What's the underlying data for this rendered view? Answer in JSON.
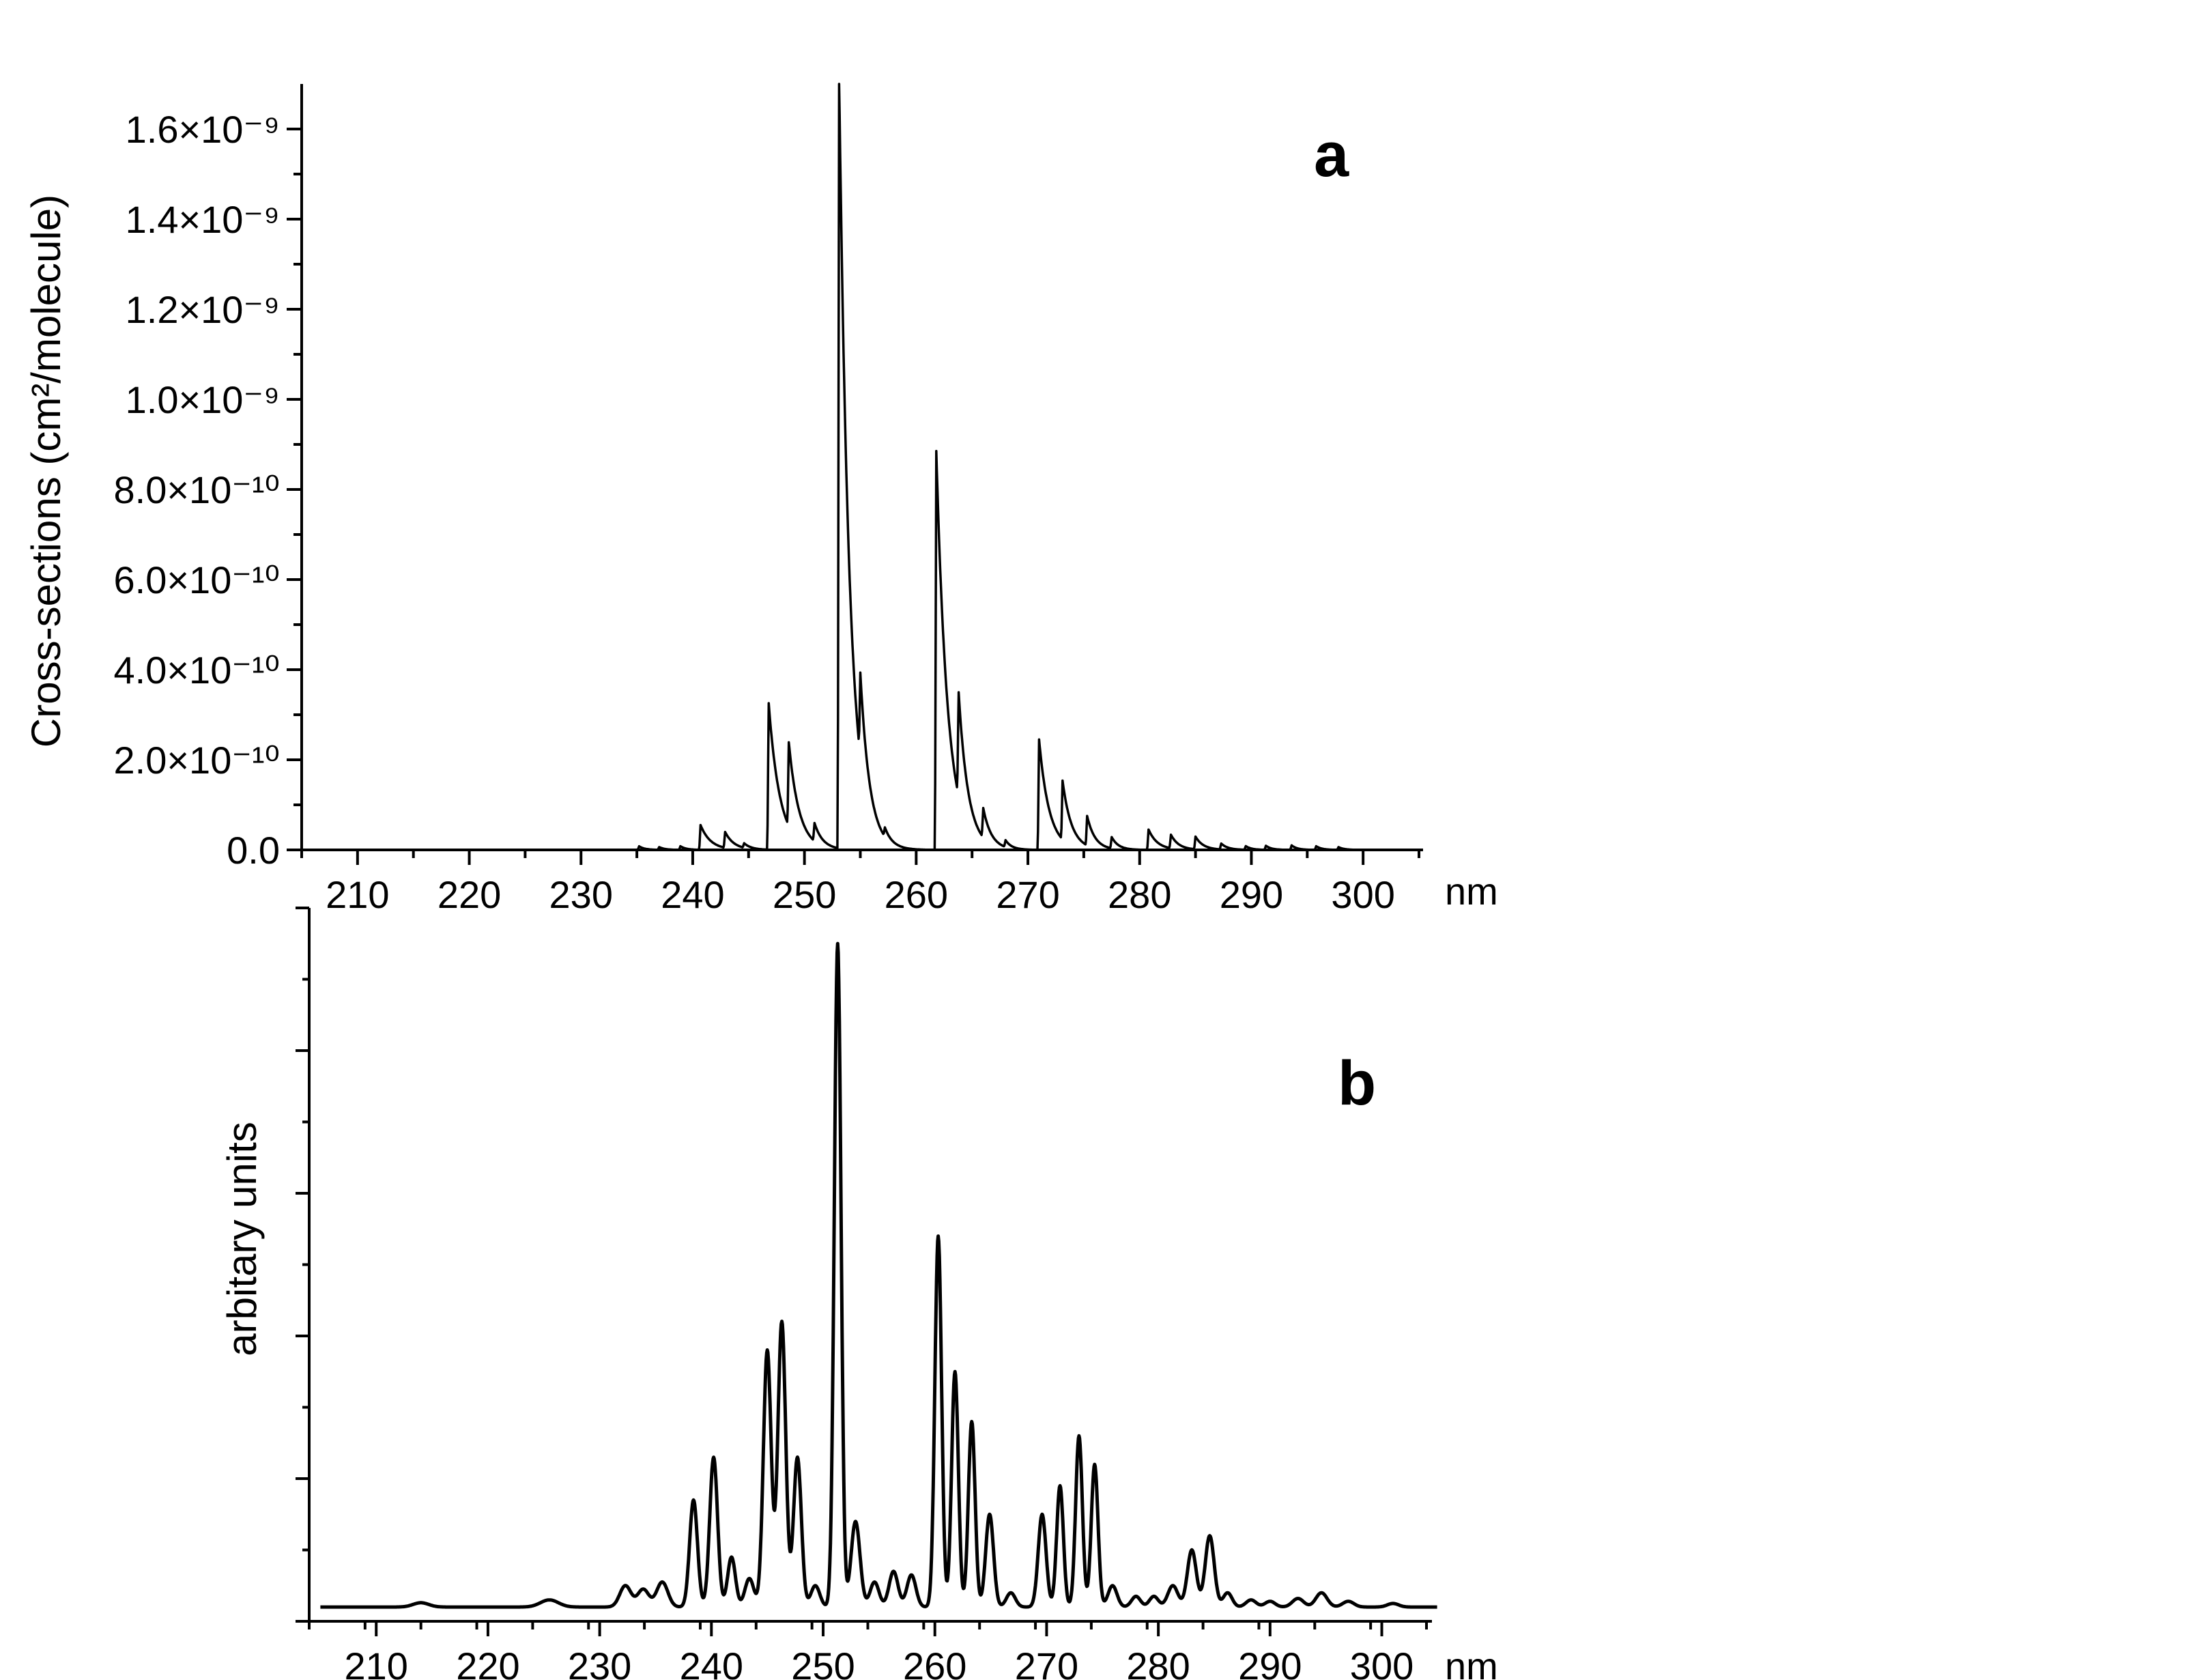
{
  "chart_data": [
    {
      "type": "line",
      "panel_label": "a",
      "ylabel": "Cross-sections (cm²/molecule)",
      "x_unit": "nm",
      "xlim": [
        205,
        305
      ],
      "ylim": [
        0,
        1.7e-09
      ],
      "x_tick_labels": [
        "210",
        "220",
        "230",
        "240",
        "250",
        "260",
        "270",
        "280",
        "290",
        "300"
      ],
      "x_ticks": [
        210,
        220,
        230,
        240,
        250,
        260,
        270,
        280,
        290,
        300
      ],
      "y_ticks": [
        {
          "value": 0,
          "label": "0.0"
        },
        {
          "value": 2e-10,
          "label": "2.0×10⁻¹⁰"
        },
        {
          "value": 4e-10,
          "label": "4.0×10⁻¹⁰"
        },
        {
          "value": 6e-10,
          "label": "6.0×10⁻¹⁰"
        },
        {
          "value": 8e-10,
          "label": "8.0×10⁻¹⁰"
        },
        {
          "value": 1e-09,
          "label": "1.0×10⁻⁹"
        },
        {
          "value": 1.2e-09,
          "label": "1.2×10⁻⁹"
        },
        {
          "value": 1.4e-09,
          "label": "1.4×10⁻⁹"
        },
        {
          "value": 1.6e-09,
          "label": "1.6×10⁻⁹"
        }
      ],
      "x_range": [
        204,
        299.5
      ],
      "peaks": [
        {
          "x": 235.2,
          "y": 8e-12,
          "w": 0.5
        },
        {
          "x": 237.0,
          "y": 6e-12,
          "w": 0.5
        },
        {
          "x": 238.9,
          "y": 8e-12,
          "w": 0.5
        },
        {
          "x": 240.7,
          "y": 5.5e-11,
          "w": 0.9
        },
        {
          "x": 242.9,
          "y": 3.5e-11,
          "w": 0.8
        },
        {
          "x": 244.6,
          "y": 1e-11,
          "w": 0.6
        },
        {
          "x": 246.8,
          "y": 3.25e-10,
          "w": 1.0
        },
        {
          "x": 248.6,
          "y": 1.85e-10,
          "w": 0.9
        },
        {
          "x": 250.9,
          "y": 4e-11,
          "w": 0.7
        },
        {
          "x": 253.1,
          "y": 1.72e-09,
          "w": 0.9
        },
        {
          "x": 255.0,
          "y": 1.85e-10,
          "w": 0.8
        },
        {
          "x": 257.2,
          "y": 2e-11,
          "w": 0.6
        },
        {
          "x": 261.8,
          "y": 8.85e-10,
          "w": 1.0
        },
        {
          "x": 263.8,
          "y": 2.3e-10,
          "w": 0.8
        },
        {
          "x": 266.0,
          "y": 6.5e-11,
          "w": 0.7
        },
        {
          "x": 268.0,
          "y": 1.5e-11,
          "w": 0.5
        },
        {
          "x": 271.0,
          "y": 2.45e-10,
          "w": 0.9
        },
        {
          "x": 273.1,
          "y": 1.3e-10,
          "w": 0.8
        },
        {
          "x": 275.3,
          "y": 6.5e-11,
          "w": 0.7
        },
        {
          "x": 277.5,
          "y": 2.5e-11,
          "w": 0.6
        },
        {
          "x": 280.8,
          "y": 4.5e-11,
          "w": 0.8
        },
        {
          "x": 282.8,
          "y": 3e-11,
          "w": 0.7
        },
        {
          "x": 285.0,
          "y": 2.8e-11,
          "w": 0.7
        },
        {
          "x": 287.3,
          "y": 1.3e-11,
          "w": 0.6
        },
        {
          "x": 289.5,
          "y": 8e-12,
          "w": 0.5
        },
        {
          "x": 291.3,
          "y": 9e-12,
          "w": 0.5
        },
        {
          "x": 293.6,
          "y": 1e-11,
          "w": 0.5
        },
        {
          "x": 295.8,
          "y": 8e-12,
          "w": 0.5
        },
        {
          "x": 297.8,
          "y": 6e-12,
          "w": 0.5
        }
      ]
    },
    {
      "type": "line",
      "panel_label": "b",
      "ylabel": "arbitary units",
      "x_unit": "nm",
      "xlim": [
        204,
        305
      ],
      "ylim": [
        0,
        1
      ],
      "x_tick_labels": [
        "210",
        "220",
        "230",
        "240",
        "250",
        "260",
        "270",
        "280",
        "290",
        "300"
      ],
      "x_ticks": [
        210,
        220,
        230,
        240,
        250,
        260,
        270,
        280,
        290,
        300
      ],
      "y_ticks": [
        0.0,
        0.2,
        0.4,
        0.6,
        0.8,
        1.0
      ],
      "y_tick_labels_shown": false,
      "x_range": [
        205,
        305
      ],
      "baseline": 0.02,
      "peaks": [
        {
          "x": 214.0,
          "y": 0.006,
          "w": 0.7
        },
        {
          "x": 225.5,
          "y": 0.01,
          "w": 0.8
        },
        {
          "x": 232.3,
          "y": 0.03,
          "w": 0.5
        },
        {
          "x": 233.9,
          "y": 0.025,
          "w": 0.5
        },
        {
          "x": 235.6,
          "y": 0.035,
          "w": 0.5
        },
        {
          "x": 238.4,
          "y": 0.15,
          "w": 0.35
        },
        {
          "x": 240.2,
          "y": 0.21,
          "w": 0.35
        },
        {
          "x": 241.8,
          "y": 0.07,
          "w": 0.35
        },
        {
          "x": 243.4,
          "y": 0.04,
          "w": 0.4
        },
        {
          "x": 245.0,
          "y": 0.36,
          "w": 0.35
        },
        {
          "x": 246.3,
          "y": 0.4,
          "w": 0.35
        },
        {
          "x": 247.7,
          "y": 0.21,
          "w": 0.35
        },
        {
          "x": 249.3,
          "y": 0.03,
          "w": 0.4
        },
        {
          "x": 251.3,
          "y": 0.93,
          "w": 0.3
        },
        {
          "x": 252.9,
          "y": 0.12,
          "w": 0.4
        },
        {
          "x": 254.6,
          "y": 0.035,
          "w": 0.4
        },
        {
          "x": 256.3,
          "y": 0.05,
          "w": 0.4
        },
        {
          "x": 257.9,
          "y": 0.045,
          "w": 0.4
        },
        {
          "x": 260.3,
          "y": 0.52,
          "w": 0.3
        },
        {
          "x": 261.8,
          "y": 0.33,
          "w": 0.3
        },
        {
          "x": 263.3,
          "y": 0.26,
          "w": 0.3
        },
        {
          "x": 264.9,
          "y": 0.13,
          "w": 0.35
        },
        {
          "x": 266.8,
          "y": 0.02,
          "w": 0.4
        },
        {
          "x": 269.6,
          "y": 0.13,
          "w": 0.35
        },
        {
          "x": 271.2,
          "y": 0.17,
          "w": 0.3
        },
        {
          "x": 272.9,
          "y": 0.24,
          "w": 0.3
        },
        {
          "x": 274.3,
          "y": 0.2,
          "w": 0.3
        },
        {
          "x": 275.9,
          "y": 0.03,
          "w": 0.4
        },
        {
          "x": 278.0,
          "y": 0.015,
          "w": 0.4
        },
        {
          "x": 279.6,
          "y": 0.015,
          "w": 0.4
        },
        {
          "x": 281.3,
          "y": 0.03,
          "w": 0.45
        },
        {
          "x": 283.0,
          "y": 0.08,
          "w": 0.4
        },
        {
          "x": 284.6,
          "y": 0.1,
          "w": 0.4
        },
        {
          "x": 286.2,
          "y": 0.02,
          "w": 0.4
        },
        {
          "x": 288.3,
          "y": 0.01,
          "w": 0.45
        },
        {
          "x": 290.0,
          "y": 0.008,
          "w": 0.45
        },
        {
          "x": 292.5,
          "y": 0.012,
          "w": 0.5
        },
        {
          "x": 294.6,
          "y": 0.02,
          "w": 0.5
        },
        {
          "x": 297.0,
          "y": 0.008,
          "w": 0.5
        },
        {
          "x": 301.0,
          "y": 0.005,
          "w": 0.5
        }
      ]
    }
  ]
}
